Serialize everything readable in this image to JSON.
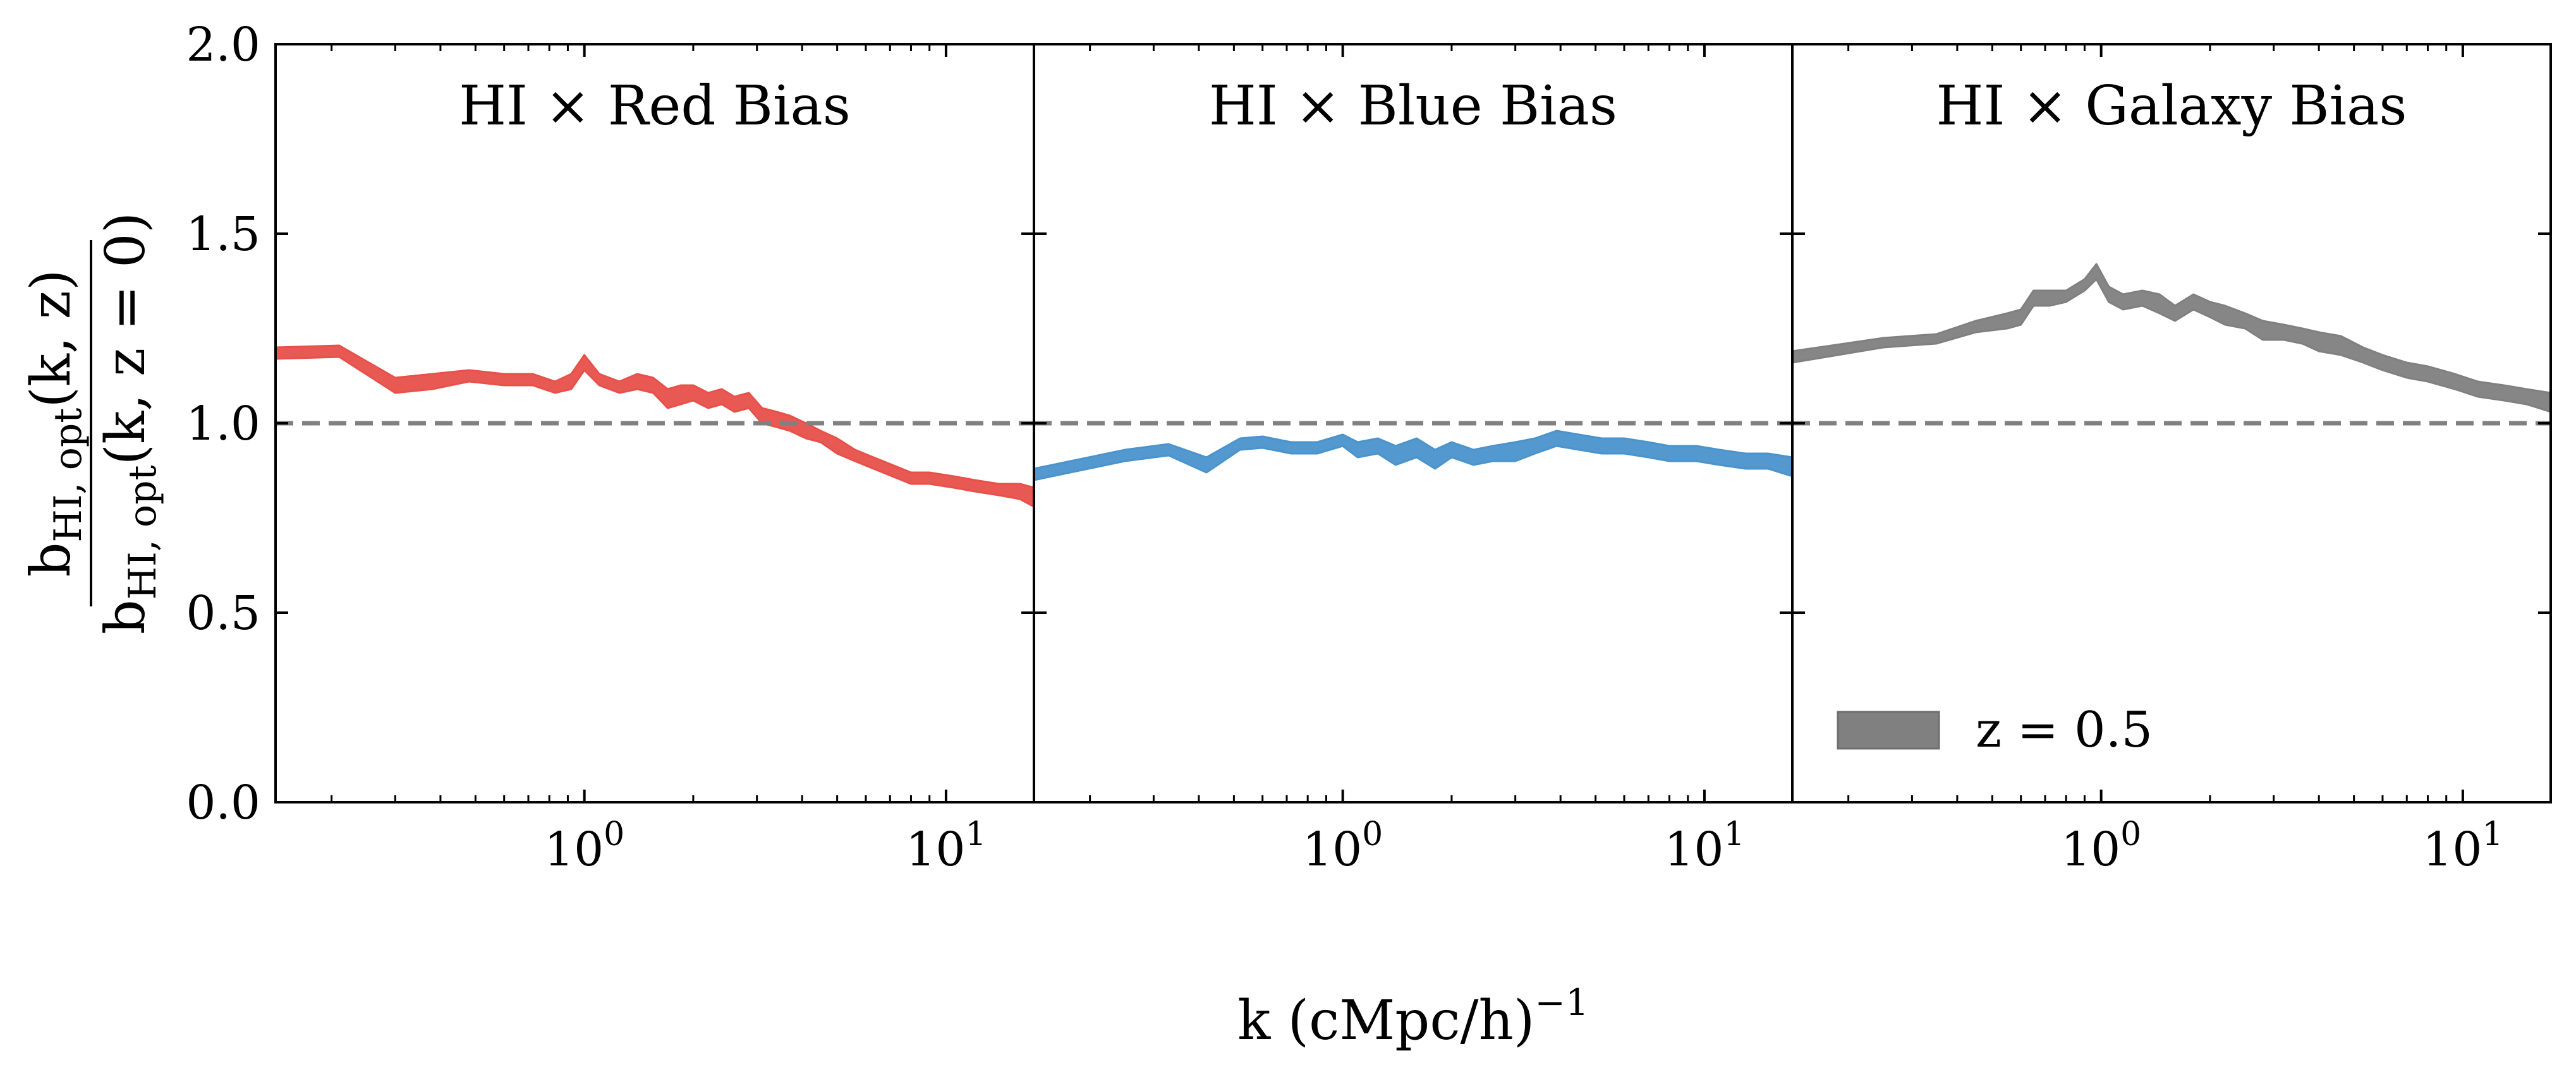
{
  "figure": {
    "xlabel": "k (cMpc/h)",
    "xlabel_exponent": "−1",
    "ylabel_numerator": {
      "base": "b",
      "sub": "HI, opt",
      "rest": "(k, z)"
    },
    "ylabel_denominator": {
      "base": "b",
      "sub": "HI, opt",
      "rest": "(k, z = 0)"
    }
  },
  "legend": {
    "label": "z = 0.5",
    "color": "#808080",
    "placement": "lower-left of right panel"
  },
  "chart_data": [
    {
      "type": "area",
      "title": "HI × Red Bias",
      "color": "#e8504a",
      "xscale": "log",
      "xlim": [
        0.14,
        17.5
      ],
      "ylim": [
        0,
        2.0
      ],
      "reference_line": 1.0,
      "yticks": [
        "0.0",
        "0.5",
        "1.0",
        "1.5",
        "2.0"
      ],
      "xticks": [
        {
          "base": "10",
          "exp": "0",
          "value": 1
        },
        {
          "base": "10",
          "exp": "1",
          "value": 10
        }
      ],
      "series": [
        {
          "x": [
            0.14,
            0.21,
            0.3,
            0.38,
            0.48,
            0.6,
            0.72,
            0.83,
            0.92,
            1.0,
            1.1,
            1.25,
            1.4,
            1.55,
            1.7,
            1.85,
            2.0,
            2.2,
            2.4,
            2.6,
            2.85,
            3.1,
            3.4,
            3.7,
            4.1,
            4.5,
            5.0,
            5.6,
            6.3,
            7.1,
            8.0,
            9.0,
            10.5,
            12.0,
            14.0,
            16.0,
            17.5
          ],
          "lower": [
            1.17,
            1.175,
            1.08,
            1.09,
            1.11,
            1.1,
            1.1,
            1.08,
            1.09,
            1.14,
            1.1,
            1.08,
            1.09,
            1.08,
            1.04,
            1.05,
            1.06,
            1.04,
            1.05,
            1.03,
            1.04,
            1.0,
            0.99,
            0.98,
            0.96,
            0.95,
            0.92,
            0.9,
            0.88,
            0.86,
            0.84,
            0.84,
            0.83,
            0.82,
            0.81,
            0.8,
            0.78
          ],
          "upper": [
            1.2,
            1.205,
            1.12,
            1.13,
            1.14,
            1.13,
            1.13,
            1.11,
            1.13,
            1.18,
            1.13,
            1.11,
            1.13,
            1.12,
            1.09,
            1.1,
            1.1,
            1.08,
            1.09,
            1.07,
            1.08,
            1.04,
            1.03,
            1.02,
            1.0,
            0.98,
            0.96,
            0.93,
            0.91,
            0.89,
            0.87,
            0.87,
            0.86,
            0.85,
            0.84,
            0.84,
            0.83
          ]
        }
      ]
    },
    {
      "type": "area",
      "title": "HI × Blue Bias",
      "color": "#4a93cc",
      "xscale": "log",
      "xlim": [
        0.14,
        17.5
      ],
      "ylim": [
        0,
        2.0
      ],
      "reference_line": 1.0,
      "xticks": [
        {
          "base": "10",
          "exp": "0",
          "value": 1
        },
        {
          "base": "10",
          "exp": "1",
          "value": 10
        }
      ],
      "series": [
        {
          "x": [
            0.14,
            0.25,
            0.33,
            0.42,
            0.52,
            0.6,
            0.72,
            0.85,
            1.0,
            1.1,
            1.25,
            1.4,
            1.6,
            1.8,
            2.0,
            2.3,
            2.6,
            3.0,
            3.4,
            3.9,
            4.5,
            5.2,
            6.0,
            7.0,
            8.0,
            9.5,
            11.0,
            13.0,
            15.0,
            17.5
          ],
          "lower": [
            0.85,
            0.9,
            0.915,
            0.87,
            0.93,
            0.935,
            0.92,
            0.92,
            0.94,
            0.91,
            0.92,
            0.89,
            0.91,
            0.88,
            0.91,
            0.89,
            0.9,
            0.9,
            0.92,
            0.94,
            0.93,
            0.92,
            0.92,
            0.91,
            0.9,
            0.9,
            0.89,
            0.88,
            0.88,
            0.86
          ],
          "upper": [
            0.88,
            0.93,
            0.945,
            0.91,
            0.96,
            0.965,
            0.95,
            0.95,
            0.97,
            0.95,
            0.96,
            0.94,
            0.96,
            0.93,
            0.95,
            0.93,
            0.94,
            0.95,
            0.96,
            0.98,
            0.97,
            0.96,
            0.96,
            0.95,
            0.94,
            0.94,
            0.93,
            0.92,
            0.92,
            0.91
          ]
        }
      ]
    },
    {
      "type": "area",
      "title": "HI × Galaxy Bias",
      "color": "#808080",
      "xscale": "log",
      "xlim": [
        0.14,
        17.5
      ],
      "ylim": [
        0,
        2.0
      ],
      "reference_line": 1.0,
      "xticks": [
        {
          "base": "10",
          "exp": "0",
          "value": 1
        },
        {
          "base": "10",
          "exp": "1",
          "value": 10
        }
      ],
      "series": [
        {
          "x": [
            0.14,
            0.25,
            0.35,
            0.45,
            0.55,
            0.6,
            0.65,
            0.72,
            0.8,
            0.9,
            0.97,
            1.05,
            1.15,
            1.3,
            1.45,
            1.6,
            1.8,
            2.0,
            2.2,
            2.5,
            2.8,
            3.2,
            3.6,
            4.0,
            4.6,
            5.3,
            6.0,
            7.0,
            8.0,
            9.5,
            11.0,
            13.0,
            15.0,
            17.5
          ],
          "lower": [
            1.16,
            1.2,
            1.21,
            1.24,
            1.25,
            1.26,
            1.31,
            1.31,
            1.32,
            1.35,
            1.38,
            1.32,
            1.3,
            1.31,
            1.29,
            1.27,
            1.3,
            1.28,
            1.26,
            1.25,
            1.22,
            1.22,
            1.21,
            1.19,
            1.18,
            1.16,
            1.14,
            1.12,
            1.11,
            1.09,
            1.07,
            1.06,
            1.05,
            1.03
          ],
          "upper": [
            1.19,
            1.225,
            1.235,
            1.27,
            1.29,
            1.3,
            1.35,
            1.35,
            1.35,
            1.38,
            1.42,
            1.36,
            1.34,
            1.35,
            1.34,
            1.31,
            1.34,
            1.32,
            1.31,
            1.29,
            1.27,
            1.26,
            1.25,
            1.24,
            1.23,
            1.2,
            1.18,
            1.16,
            1.15,
            1.13,
            1.11,
            1.1,
            1.09,
            1.08
          ]
        }
      ]
    }
  ]
}
